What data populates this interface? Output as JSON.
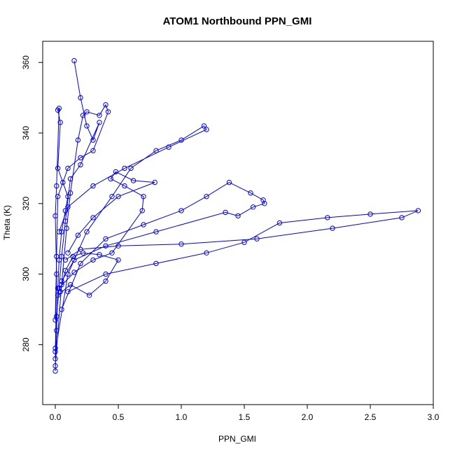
{
  "chart_data": {
    "type": "line",
    "title": "ATOM1 Northbound PPN_GMI",
    "xlabel": "PPN_GMI",
    "ylabel": "Theta (K)",
    "xlim": [
      -0.1,
      3.0
    ],
    "ylim": [
      263,
      366
    ],
    "xticks": [
      0.0,
      0.5,
      1.0,
      1.5,
      2.0,
      2.5,
      3.0
    ],
    "xtick_labels": [
      "0.0",
      "0.5",
      "1.0",
      "1.5",
      "2.0",
      "2.5",
      "3.0"
    ],
    "yticks": [
      280,
      300,
      320,
      340,
      360
    ],
    "ytick_labels": [
      "280",
      "300",
      "320",
      "340",
      "360"
    ],
    "grid": false,
    "legend": "none",
    "color": "#0000ee",
    "series": [
      {
        "values": [
          [
            0.0,
            272.5
          ],
          [
            0.01,
            284.0
          ],
          [
            0.02,
            296.0
          ],
          [
            0.03,
            304.0
          ],
          [
            0.05,
            312.0
          ],
          [
            0.08,
            318.0
          ],
          [
            0.1,
            322.0
          ],
          [
            0.02,
            330.0
          ],
          [
            0.04,
            343.0
          ],
          [
            0.02,
            346.5
          ],
          [
            0.03,
            347.0
          ],
          [
            0.01,
            325.0
          ],
          [
            0.0,
            316.5
          ],
          [
            0.01,
            300.0
          ],
          [
            0.0,
            276.0
          ]
        ]
      },
      {
        "values": [
          [
            0.0,
            274.0
          ],
          [
            0.05,
            297.0
          ],
          [
            0.09,
            313.0
          ],
          [
            0.12,
            323.0
          ],
          [
            0.18,
            338.0
          ],
          [
            0.22,
            345.0
          ],
          [
            0.25,
            346.0
          ],
          [
            0.35,
            345.0
          ],
          [
            0.4,
            348.0
          ],
          [
            0.42,
            346.0
          ],
          [
            0.3,
            335.0
          ],
          [
            0.2,
            333.0
          ],
          [
            0.1,
            330.0
          ],
          [
            0.06,
            326.0
          ],
          [
            0.02,
            322.0
          ],
          [
            0.01,
            305.0
          ],
          [
            0.0,
            287.0
          ]
        ]
      },
      {
        "values": [
          [
            0.15,
            360.5
          ],
          [
            0.2,
            350.0
          ],
          [
            0.25,
            342.0
          ],
          [
            0.3,
            338.0
          ],
          [
            0.35,
            343.0
          ],
          [
            0.2,
            331.0
          ],
          [
            0.12,
            327.0
          ],
          [
            0.08,
            315.0
          ],
          [
            0.05,
            305.0
          ],
          [
            0.03,
            296.0
          ],
          [
            0.01,
            288.0
          ],
          [
            0.0,
            279.0
          ]
        ]
      },
      {
        "values": [
          [
            0.0,
            278.0
          ],
          [
            0.1,
            300.0
          ],
          [
            0.25,
            312.0
          ],
          [
            0.45,
            322.0
          ],
          [
            0.6,
            330.0
          ],
          [
            0.8,
            335.0
          ],
          [
            1.0,
            338.0
          ],
          [
            1.18,
            342.0
          ],
          [
            1.2,
            341.0
          ],
          [
            0.9,
            336.0
          ],
          [
            0.55,
            330.0
          ],
          [
            0.3,
            325.0
          ],
          [
            0.1,
            319.0
          ],
          [
            0.03,
            312.0
          ]
        ]
      },
      {
        "values": [
          [
            0.05,
            290.0
          ],
          [
            0.2,
            303.0
          ],
          [
            0.4,
            310.0
          ],
          [
            0.7,
            314.0
          ],
          [
            1.0,
            318.0
          ],
          [
            1.2,
            322.0
          ],
          [
            1.38,
            326.0
          ],
          [
            1.55,
            323.0
          ],
          [
            1.65,
            321.0
          ],
          [
            1.66,
            320.0
          ],
          [
            1.57,
            319.0
          ],
          [
            1.45,
            316.5
          ],
          [
            1.35,
            317.5
          ],
          [
            0.8,
            312.0
          ],
          [
            0.4,
            308.0
          ],
          [
            0.15,
            304.0
          ],
          [
            0.05,
            298.0
          ]
        ]
      },
      {
        "values": [
          [
            0.1,
            295.0
          ],
          [
            0.4,
            300.0
          ],
          [
            0.8,
            303.0
          ],
          [
            1.2,
            306.0
          ],
          [
            1.5,
            309.0
          ],
          [
            1.78,
            314.5
          ],
          [
            2.16,
            316.0
          ],
          [
            2.5,
            317.0
          ],
          [
            2.88,
            318.0
          ],
          [
            2.75,
            316.0
          ],
          [
            2.2,
            313.0
          ],
          [
            1.6,
            310.0
          ],
          [
            1.0,
            308.5
          ],
          [
            0.5,
            308.0
          ],
          [
            0.2,
            307.0
          ],
          [
            0.08,
            304.0
          ]
        ]
      },
      {
        "values": [
          [
            0.02,
            294.0
          ],
          [
            0.12,
            297.0
          ],
          [
            0.27,
            294.0
          ],
          [
            0.4,
            298.0
          ],
          [
            0.5,
            304.0
          ],
          [
            0.35,
            305.5
          ],
          [
            0.22,
            306.0
          ],
          [
            0.14,
            305.0
          ],
          [
            0.08,
            301.0
          ],
          [
            0.04,
            295.0
          ]
        ]
      },
      {
        "values": [
          [
            0.03,
            296.0
          ],
          [
            0.15,
            300.5
          ],
          [
            0.3,
            304.0
          ],
          [
            0.45,
            306.0
          ],
          [
            0.69,
            318.0
          ],
          [
            0.7,
            322.0
          ],
          [
            0.55,
            325.0
          ],
          [
            0.44,
            327.0
          ],
          [
            0.48,
            329.0
          ],
          [
            0.62,
            326.5
          ],
          [
            0.79,
            326.0
          ],
          [
            0.5,
            322.0
          ],
          [
            0.3,
            316.0
          ],
          [
            0.18,
            311.0
          ],
          [
            0.1,
            306.0
          ]
        ]
      }
    ]
  }
}
